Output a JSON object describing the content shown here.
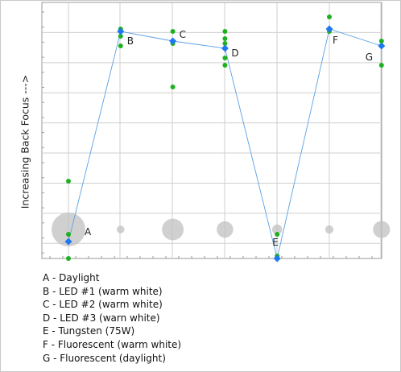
{
  "chart_data": {
    "type": "scatter",
    "ylabel": "Increasing Back Focus --->",
    "xlabel": "",
    "title": "",
    "ylim": [
      0,
      100
    ],
    "grid": true,
    "series": [
      {
        "name": "mean",
        "points": [
          {
            "label": "A",
            "x": 1,
            "y": 7
          },
          {
            "label": "B",
            "x": 2,
            "y": 94
          },
          {
            "label": "C",
            "x": 3,
            "y": 90
          },
          {
            "label": "D",
            "x": 4,
            "y": 87
          },
          {
            "label": "E",
            "x": 5,
            "y": 0
          },
          {
            "label": "F",
            "x": 6,
            "y": 95
          },
          {
            "label": "G",
            "x": 7,
            "y": 88
          }
        ]
      },
      {
        "name": "individual shots",
        "points": [
          {
            "x": 1,
            "y": 32
          },
          {
            "x": 1,
            "y": 10
          },
          {
            "x": 1,
            "y": 0
          },
          {
            "x": 2,
            "y": 95
          },
          {
            "x": 2,
            "y": 92
          },
          {
            "x": 2,
            "y": 88
          },
          {
            "x": 3,
            "y": 94
          },
          {
            "x": 3,
            "y": 90
          },
          {
            "x": 3,
            "y": 89
          },
          {
            "x": 3,
            "y": 71
          },
          {
            "x": 4,
            "y": 94
          },
          {
            "x": 4,
            "y": 91
          },
          {
            "x": 4,
            "y": 89
          },
          {
            "x": 4,
            "y": 83
          },
          {
            "x": 4,
            "y": 80
          },
          {
            "x": 5,
            "y": 10
          },
          {
            "x": 5,
            "y": 1
          },
          {
            "x": 5,
            "y": 0
          },
          {
            "x": 6,
            "y": 100
          },
          {
            "x": 6,
            "y": 94
          },
          {
            "x": 7,
            "y": 90
          },
          {
            "x": 7,
            "y": 80
          }
        ]
      },
      {
        "name": "spread",
        "points": [
          {
            "x": 1,
            "y": 10,
            "size": 100
          },
          {
            "x": 2,
            "y": 10,
            "size": 10
          },
          {
            "x": 3,
            "y": 10,
            "size": 58
          },
          {
            "x": 4,
            "y": 10,
            "size": 40
          },
          {
            "x": 5,
            "y": 10,
            "size": 18
          },
          {
            "x": 6,
            "y": 10,
            "size": 12
          },
          {
            "x": 7,
            "y": 10,
            "size": 42
          }
        ]
      }
    ],
    "legend": [
      "A - Daylight",
      "B - LED #1 (warm white)",
      "C - LED #2 (warm white)",
      "D - LED #3 (warn white)",
      "E - Tungsten (75W)",
      "F - Fluorescent (warm white)",
      "G - Fluorescent (daylight)"
    ],
    "colors": {
      "mean": "#1e78f0",
      "line": "#5aa0e6",
      "shot": "#1fb01f",
      "spread": "#c0c0c0",
      "grid": "#cfcfcf"
    }
  }
}
